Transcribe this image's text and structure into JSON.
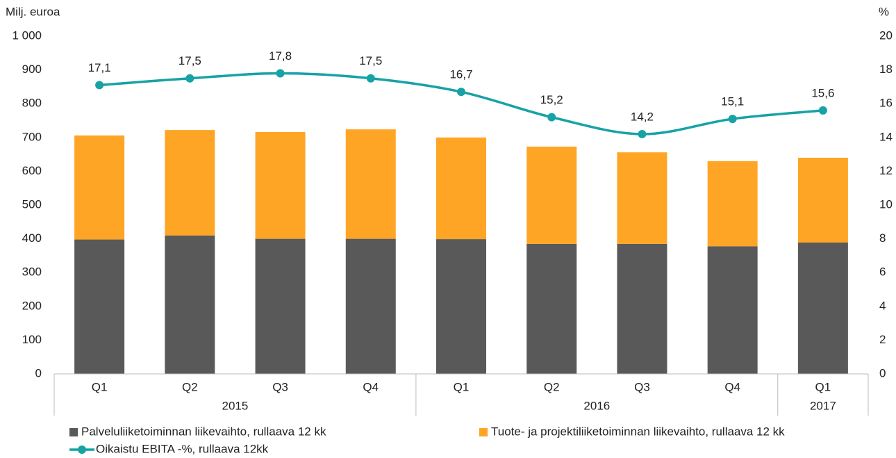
{
  "chart_data": {
    "type": "bar-line",
    "y_label": "Milj. euroa",
    "y2_label": "%",
    "groups": [
      {
        "name": "2015",
        "categories": [
          "Q1",
          "Q2",
          "Q3",
          "Q4"
        ]
      },
      {
        "name": "2016",
        "categories": [
          "Q1",
          "Q2",
          "Q3",
          "Q4"
        ]
      },
      {
        "name": "2017",
        "categories": [
          "Q1"
        ]
      }
    ],
    "series": [
      {
        "name": "Palveluliiketoiminnan liikevaihto, rullaava 12 kk",
        "type": "bar",
        "color": "#595959",
        "values": [
          398,
          410,
          400,
          400,
          399,
          385,
          385,
          378,
          389
        ]
      },
      {
        "name": "Tuote- ja projektiliiketoiminnan liikevaihto, rullaava 12 kk",
        "type": "bar",
        "color": "#ffa526",
        "values": [
          308,
          312,
          316,
          324,
          301,
          288,
          271,
          252,
          251
        ]
      },
      {
        "name": "Oikaistu EBITA -%, rullaava 12kk",
        "type": "line",
        "axis": "y2",
        "color": "#17a2a6",
        "values": [
          17.1,
          17.5,
          17.8,
          17.5,
          16.7,
          15.2,
          14.2,
          15.1,
          15.6
        ],
        "value_labels": [
          "17,1",
          "17,5",
          "17,8",
          "17,5",
          "16,7",
          "15,2",
          "14,2",
          "15,1",
          "15,6"
        ]
      }
    ],
    "stacked": true,
    "ylim": [
      0,
      1000
    ],
    "yticks": [
      0,
      100,
      200,
      300,
      400,
      500,
      600,
      700,
      800,
      900,
      {
        "value": 1000,
        "label": "1 000"
      }
    ],
    "y2lim": [
      0,
      20
    ],
    "y2ticks": [
      0,
      2,
      4,
      6,
      8,
      10,
      12,
      14,
      16,
      18,
      20
    ],
    "grid": false,
    "legend": "bottom"
  }
}
